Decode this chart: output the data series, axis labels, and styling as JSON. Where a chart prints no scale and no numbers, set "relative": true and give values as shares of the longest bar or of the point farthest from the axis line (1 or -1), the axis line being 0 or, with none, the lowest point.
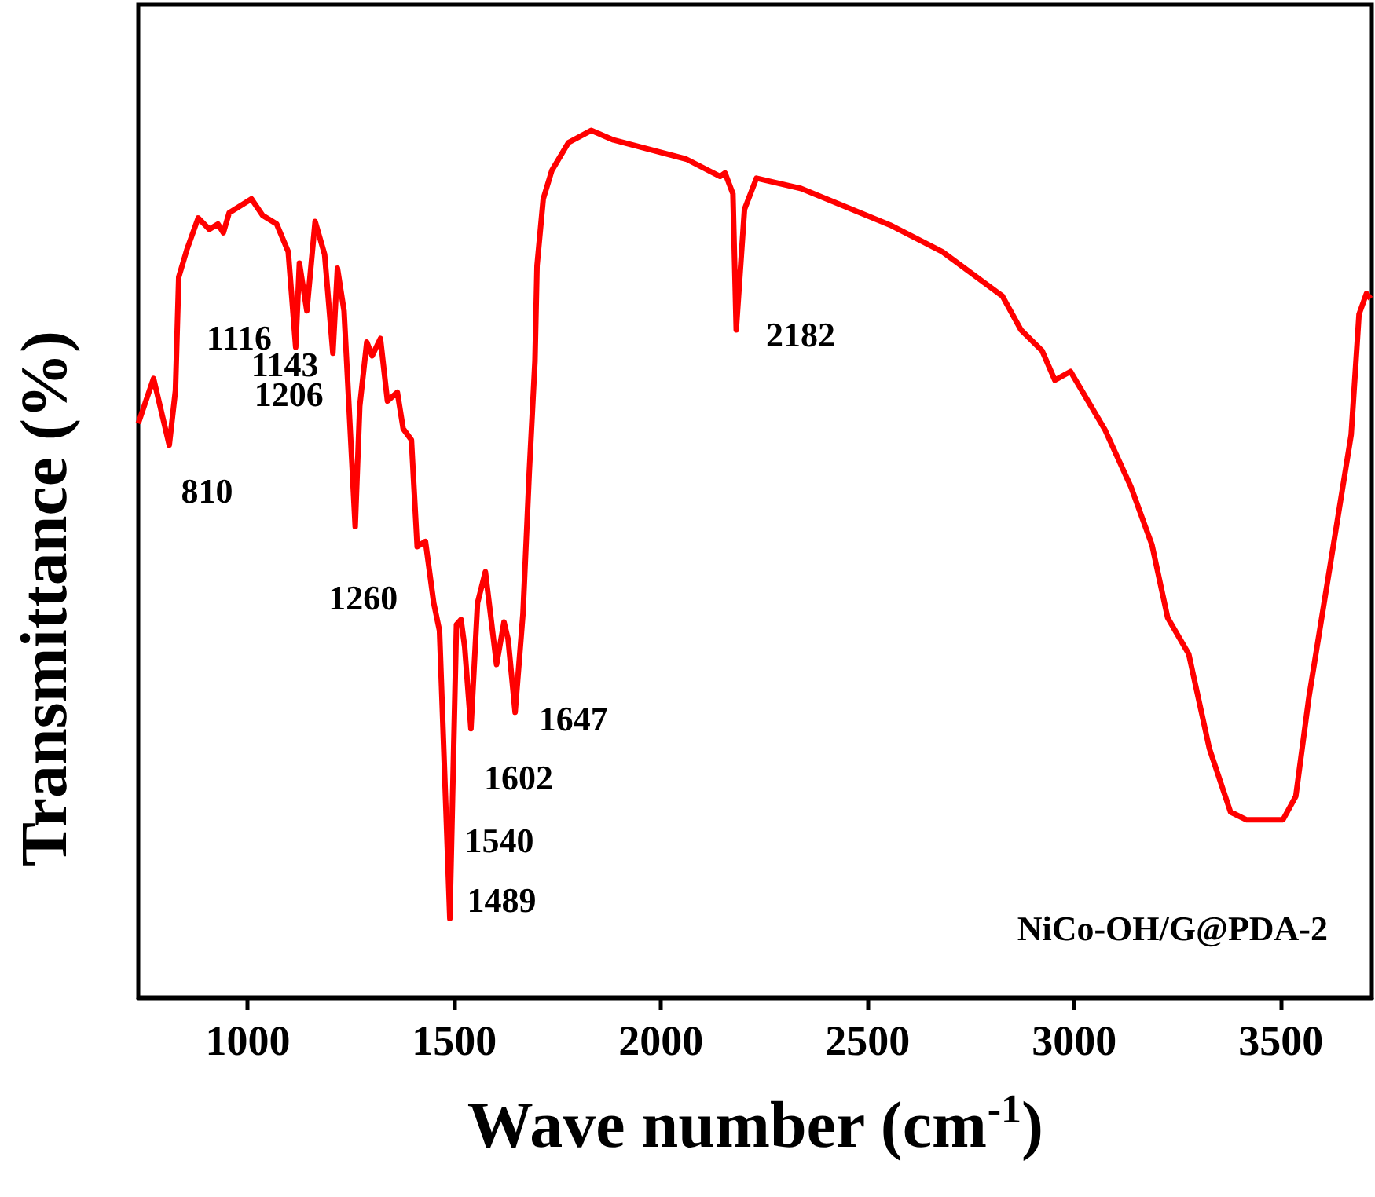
{
  "chart_data": {
    "type": "line",
    "relative": true,
    "xlabel": "Wave number (cm$^{-1}$)",
    "ylabel": "Transmittance (%)",
    "xlim": [
      735,
      3720
    ],
    "xticks": [
      1000,
      1500,
      2000,
      2500,
      3000,
      3500
    ],
    "grid": false,
    "marker": "none",
    "line_style": "solid",
    "series": [
      {
        "color": "#ff0000",
        "x": [
          735,
          772,
          810,
          825,
          833,
          853,
          880,
          907,
          928,
          941,
          955,
          1009,
          1036,
          1070,
          1098,
          1116,
          1125,
          1143,
          1163,
          1186,
          1206,
          1217,
          1233,
          1260,
          1271,
          1288,
          1301,
          1321,
          1338,
          1362,
          1376,
          1396,
          1410,
          1430,
          1450,
          1464,
          1489,
          1505,
          1516,
          1525,
          1540,
          1556,
          1575,
          1602,
          1620,
          1630,
          1647,
          1666,
          1681,
          1695,
          1700,
          1715,
          1736,
          1776,
          1831,
          1885,
          2061,
          2143,
          2155,
          2174,
          2182,
          2202,
          2231,
          2339,
          2554,
          2681,
          2826,
          2871,
          2922,
          2953,
          2991,
          3074,
          3137,
          3188,
          3226,
          3277,
          3327,
          3378,
          3416,
          3505,
          3536,
          3568,
          3619,
          3670,
          3689,
          3707,
          3717
        ],
        "values": [
          0.662,
          0.714,
          0.637,
          0.7,
          0.831,
          0.863,
          0.899,
          0.886,
          0.892,
          0.882,
          0.905,
          0.921,
          0.902,
          0.892,
          0.86,
          0.75,
          0.847,
          0.792,
          0.895,
          0.857,
          0.743,
          0.841,
          0.792,
          0.543,
          0.682,
          0.756,
          0.74,
          0.76,
          0.688,
          0.698,
          0.656,
          0.643,
          0.52,
          0.526,
          0.455,
          0.423,
          0.091,
          0.43,
          0.436,
          0.404,
          0.31,
          0.455,
          0.491,
          0.384,
          0.433,
          0.413,
          0.329,
          0.443,
          0.604,
          0.734,
          0.844,
          0.921,
          0.954,
          0.986,
          1.0,
          0.989,
          0.967,
          0.947,
          0.951,
          0.927,
          0.77,
          0.909,
          0.945,
          0.933,
          0.891,
          0.86,
          0.809,
          0.77,
          0.746,
          0.712,
          0.722,
          0.655,
          0.589,
          0.522,
          0.438,
          0.396,
          0.287,
          0.214,
          0.205,
          0.205,
          0.232,
          0.347,
          0.498,
          0.649,
          0.788,
          0.812,
          0.806
        ]
      }
    ],
    "annotations": [
      {
        "text": "810",
        "x": 810,
        "y": 0.637
      },
      {
        "text": "1116",
        "x": 1116,
        "y": 0.75
      },
      {
        "text": "1143",
        "x": 1143,
        "y": 0.792
      },
      {
        "text": "1206",
        "x": 1206,
        "y": 0.743
      },
      {
        "text": "1260",
        "x": 1260,
        "y": 0.543
      },
      {
        "text": "1489",
        "x": 1489,
        "y": 0.091
      },
      {
        "text": "1540",
        "x": 1540,
        "y": 0.31
      },
      {
        "text": "1602",
        "x": 1602,
        "y": 0.384
      },
      {
        "text": "1647",
        "x": 1647,
        "y": 0.329
      },
      {
        "text": "2182",
        "x": 2182,
        "y": 0.77
      },
      "NiCo-OH/G@PDA-2"
    ]
  }
}
